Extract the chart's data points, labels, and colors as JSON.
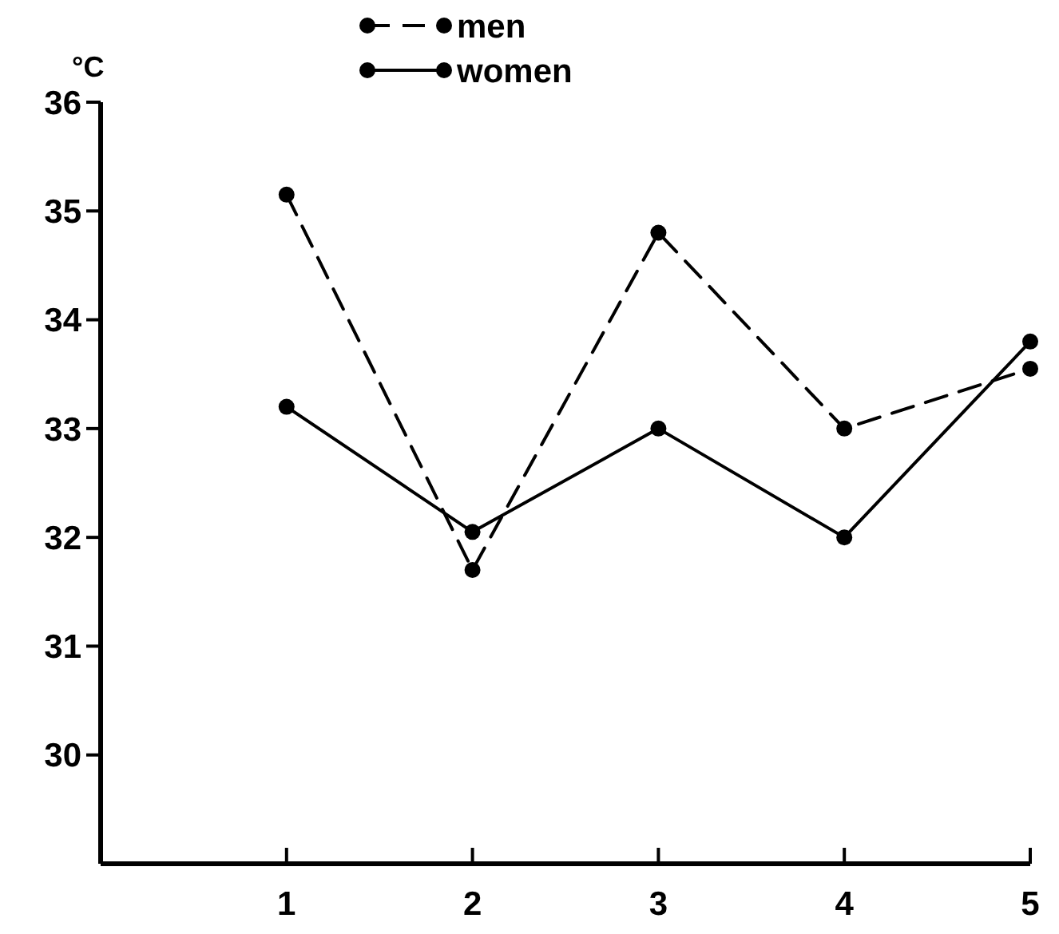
{
  "chart_data": {
    "type": "line",
    "ylabel": "°C",
    "x": [
      1,
      2,
      3,
      4,
      5
    ],
    "xlim": [
      0,
      5
    ],
    "xticks": [
      1,
      2,
      3,
      4,
      5
    ],
    "ylim": [
      29,
      36
    ],
    "yticks": [
      30,
      31,
      32,
      33,
      34,
      35,
      36
    ],
    "grid": false,
    "legend": "top",
    "marker": "circle",
    "series": [
      {
        "name": "men",
        "color": "#000000",
        "line_style": "dashed",
        "values": [
          35.15,
          31.7,
          34.8,
          33.0,
          33.55
        ]
      },
      {
        "name": "women",
        "color": "#000000",
        "line_style": "solid",
        "values": [
          33.2,
          32.05,
          33.0,
          32.0,
          33.8
        ]
      }
    ]
  }
}
